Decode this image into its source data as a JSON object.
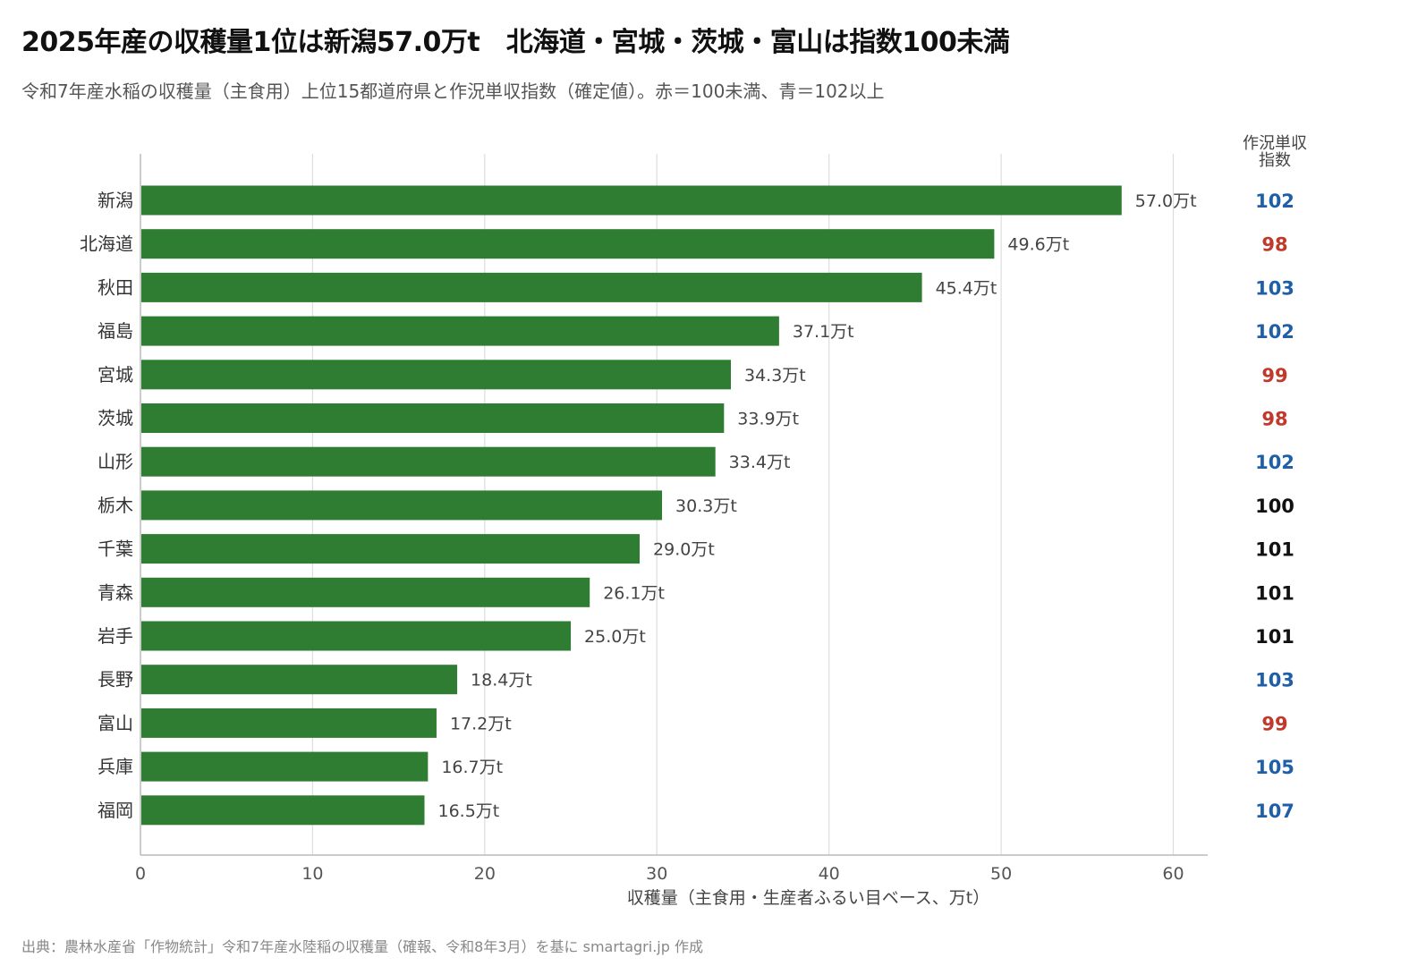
{
  "title": "2025年産の収穫量1位は新潟57.0万t　北海道・宮城・茨城・富山は指数100未満",
  "subtitle": "令和7年産水稲の収穫量（主食用）上位15都道府県と作況単収指数（確定値）。赤＝100未満、青＝102以上",
  "source": "出典：農林水産省「作物統計」令和7年産水陸稲の収穫量（確報、令和8年3月）を基に smartagri.jp 作成",
  "colors": {
    "bar": "#2e7d32",
    "index_low": "#c0392b",
    "index_high": "#1f5fa8",
    "index_normal": "#111111",
    "grid": "#dddddd",
    "axis": "#bbbbbb"
  },
  "chart_data": {
    "type": "bar",
    "orientation": "horizontal",
    "categories": [
      "新潟",
      "北海道",
      "秋田",
      "福島",
      "宮城",
      "茨城",
      "山形",
      "栃木",
      "千葉",
      "青森",
      "岩手",
      "長野",
      "富山",
      "兵庫",
      "福岡"
    ],
    "values": [
      57.0,
      49.6,
      45.4,
      37.1,
      34.3,
      33.9,
      33.4,
      30.3,
      29.0,
      26.1,
      25.0,
      18.4,
      17.2,
      16.7,
      16.5
    ],
    "value_labels": [
      "57.0万t",
      "49.6万t",
      "45.4万t",
      "37.1万t",
      "34.3万t",
      "33.9万t",
      "33.4万t",
      "30.3万t",
      "29.0万t",
      "26.1万t",
      "25.0万t",
      "18.4万t",
      "17.2万t",
      "16.7万t",
      "16.5万t"
    ],
    "index_header": [
      "作況単収",
      "指数"
    ],
    "index_values": [
      102,
      98,
      103,
      102,
      99,
      98,
      102,
      100,
      101,
      101,
      101,
      103,
      99,
      105,
      107
    ],
    "xlabel": "収穫量（主食用・生産者ふるい目ベース、万t）",
    "xlim": [
      0,
      62
    ],
    "xticks": [
      0,
      10,
      20,
      30,
      40,
      50,
      60
    ],
    "grid": true
  }
}
